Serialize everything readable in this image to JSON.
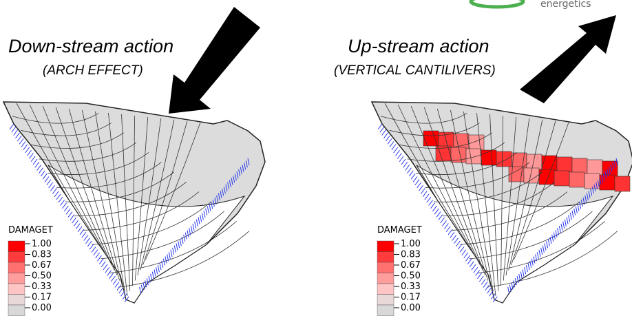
{
  "logo_text": "energetics",
  "panels": [
    {
      "title": "Down-stream action",
      "subtitle": "(ARCH EFFECT)",
      "legend": {
        "title": "DAMAGET",
        "levels": [
          "1.00",
          "0.83",
          "0.67",
          "0.50",
          "0.33",
          "0.17",
          "0.00"
        ]
      }
    },
    {
      "title": "Up-stream action",
      "subtitle": "(VERTICAL CANTILIVERS)",
      "legend": {
        "title": "DAMAGET",
        "levels": [
          "1.00",
          "0.83",
          "0.67",
          "0.50",
          "0.33",
          "0.17",
          "0.00"
        ]
      }
    }
  ]
}
